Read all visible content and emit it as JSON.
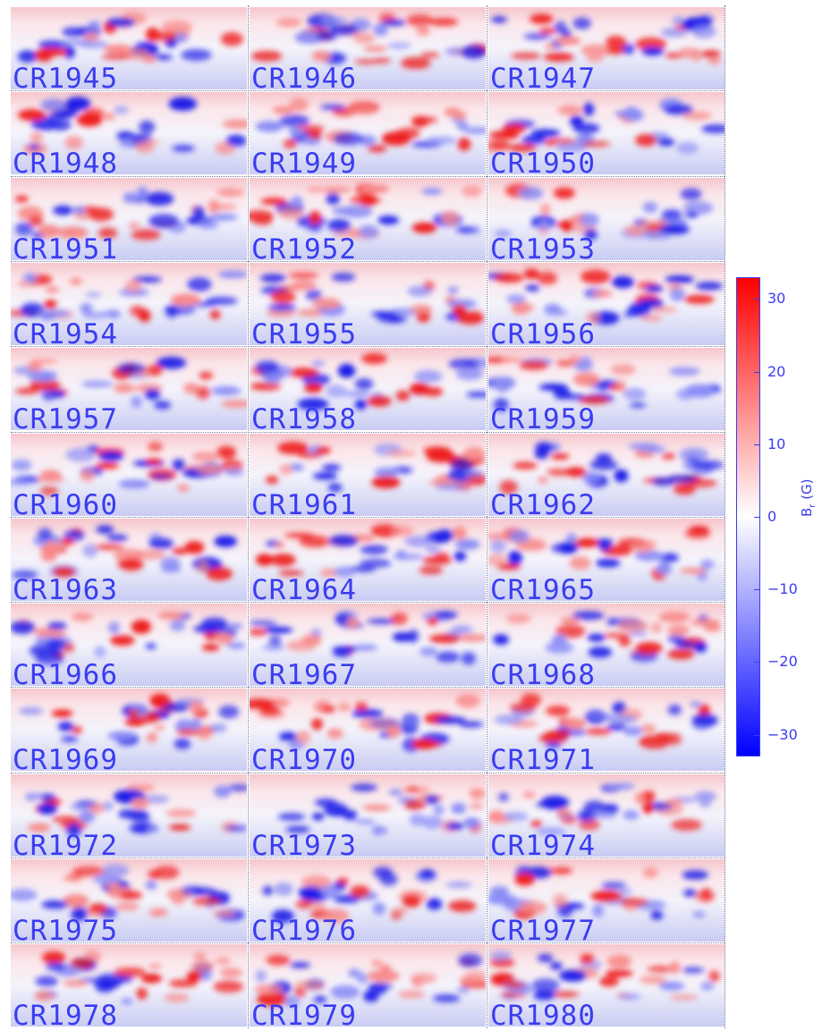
{
  "chart_data": {
    "type": "heatmap",
    "panels": [
      "CR1945",
      "CR1946",
      "CR1947",
      "CR1948",
      "CR1949",
      "CR1950",
      "CR1951",
      "CR1952",
      "CR1953",
      "CR1954",
      "CR1955",
      "CR1956",
      "CR1957",
      "CR1958",
      "CR1959",
      "CR1960",
      "CR1961",
      "CR1962",
      "CR1963",
      "CR1964",
      "CR1965",
      "CR1966",
      "CR1967",
      "CR1968",
      "CR1969",
      "CR1970",
      "CR1971",
      "CR1972",
      "CR1973",
      "CR1974",
      "CR1975",
      "CR1976",
      "CR1977",
      "CR1978",
      "CR1979",
      "CR1980"
    ],
    "columns": 3,
    "rows": 12,
    "colorbar": {
      "label_main": "B",
      "label_sub": "r",
      "label_unit": " (G)",
      "range": [
        -33,
        33
      ],
      "ticks": [
        "30",
        "20",
        "10",
        "0",
        "−10",
        "−20",
        "−30"
      ],
      "tick_values": [
        30,
        20,
        10,
        0,
        -10,
        -20,
        -30
      ],
      "colors": {
        "positive": "#ff0000",
        "zero": "#ffffff",
        "negative": "#0000ff"
      }
    },
    "colors": {
      "label": "#3a3cf2"
    }
  }
}
